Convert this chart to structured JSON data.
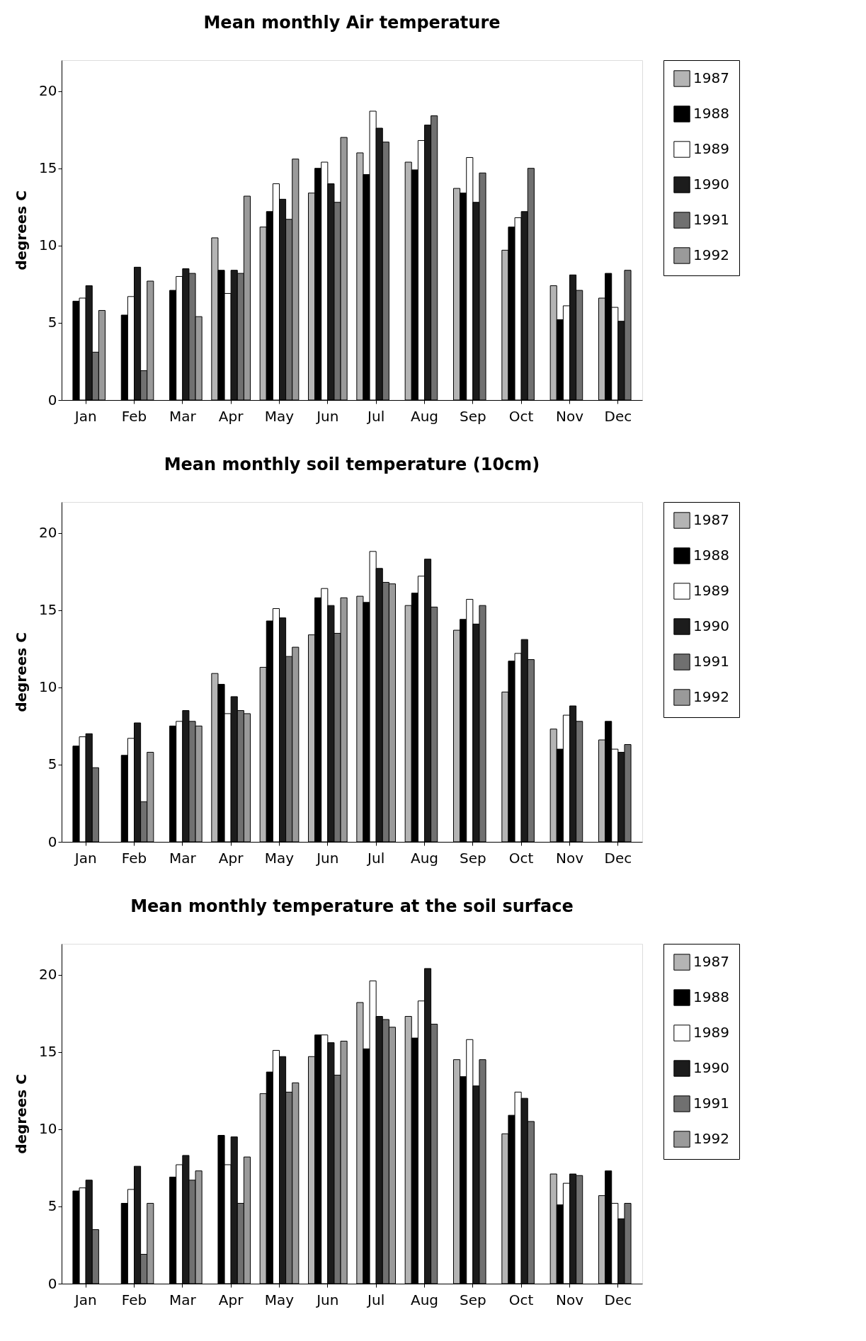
{
  "chart_data": [
    {
      "type": "bar",
      "title": "Mean monthly Air temperature",
      "ylabel": "degrees C",
      "categories": [
        "Jan",
        "Feb",
        "Mar",
        "Apr",
        "May",
        "Jun",
        "Jul",
        "Aug",
        "Sep",
        "Oct",
        "Nov",
        "Dec"
      ],
      "ylim": [
        0,
        22
      ],
      "yticks": [
        0,
        5,
        10,
        15,
        20
      ],
      "grid": false,
      "legend": "right",
      "series": [
        {
          "name": "1987",
          "color": "#b4b4b4",
          "values": [
            null,
            null,
            null,
            10.5,
            11.2,
            13.4,
            16.0,
            15.4,
            13.7,
            9.7,
            7.4,
            6.6
          ]
        },
        {
          "name": "1988",
          "color": "#000000",
          "values": [
            6.4,
            5.5,
            7.1,
            8.4,
            12.2,
            15.0,
            14.6,
            14.9,
            13.4,
            11.2,
            5.2,
            8.2
          ]
        },
        {
          "name": "1989",
          "color": "#ffffff",
          "values": [
            6.6,
            6.7,
            8.0,
            6.9,
            14.0,
            15.4,
            18.7,
            16.8,
            15.7,
            11.8,
            6.1,
            6.0
          ]
        },
        {
          "name": "1990",
          "color": "#1c1c1c",
          "values": [
            7.4,
            8.6,
            8.5,
            8.4,
            13.0,
            14.0,
            17.6,
            17.8,
            12.8,
            12.2,
            8.1,
            5.1
          ]
        },
        {
          "name": "1991",
          "color": "#707070",
          "values": [
            3.1,
            1.9,
            8.2,
            8.2,
            11.7,
            12.8,
            16.7,
            18.4,
            14.7,
            15.0,
            7.1,
            8.4
          ]
        },
        {
          "name": "1992",
          "color": "#9a9a9a",
          "values": [
            5.8,
            7.7,
            5.4,
            13.2,
            15.6,
            17.0,
            null,
            null,
            null,
            null,
            null,
            null
          ]
        }
      ]
    },
    {
      "type": "bar",
      "title": "Mean monthly soil temperature (10cm)",
      "ylabel": "degrees C",
      "categories": [
        "Jan",
        "Feb",
        "Mar",
        "Apr",
        "May",
        "Jun",
        "Jul",
        "Aug",
        "Sep",
        "Oct",
        "Nov",
        "Dec"
      ],
      "ylim": [
        0,
        22
      ],
      "yticks": [
        0,
        5,
        10,
        15,
        20
      ],
      "grid": false,
      "legend": "right",
      "series": [
        {
          "name": "1987",
          "color": "#b4b4b4",
          "values": [
            null,
            null,
            null,
            10.9,
            11.3,
            13.4,
            15.9,
            15.3,
            13.7,
            9.7,
            7.3,
            6.6
          ]
        },
        {
          "name": "1988",
          "color": "#000000",
          "values": [
            6.2,
            5.6,
            7.5,
            10.2,
            14.3,
            15.8,
            15.5,
            16.1,
            14.4,
            11.7,
            6.0,
            7.8
          ]
        },
        {
          "name": "1989",
          "color": "#ffffff",
          "values": [
            6.8,
            6.7,
            7.8,
            8.3,
            15.1,
            16.4,
            18.8,
            17.2,
            15.7,
            12.2,
            8.2,
            6.0
          ]
        },
        {
          "name": "1990",
          "color": "#1c1c1c",
          "values": [
            7.0,
            7.7,
            8.5,
            9.4,
            14.5,
            15.3,
            17.7,
            18.3,
            14.1,
            13.1,
            8.8,
            5.8
          ]
        },
        {
          "name": "1991",
          "color": "#707070",
          "values": [
            4.8,
            2.6,
            7.8,
            8.5,
            12.0,
            13.5,
            16.8,
            15.2,
            15.3,
            11.8,
            7.8,
            6.3
          ]
        },
        {
          "name": "1992",
          "color": "#9a9a9a",
          "values": [
            null,
            5.8,
            7.5,
            8.3,
            12.6,
            15.8,
            16.7,
            null,
            null,
            null,
            null,
            null
          ]
        }
      ]
    },
    {
      "type": "bar",
      "title": "Mean monthly temperature at the soil surface",
      "ylabel": "degrees C",
      "categories": [
        "Jan",
        "Feb",
        "Mar",
        "Apr",
        "May",
        "Jun",
        "Jul",
        "Aug",
        "Sep",
        "Oct",
        "Nov",
        "Dec"
      ],
      "ylim": [
        0,
        22
      ],
      "yticks": [
        0,
        5,
        10,
        15,
        20
      ],
      "grid": false,
      "legend": "right",
      "series": [
        {
          "name": "1987",
          "color": "#b4b4b4",
          "values": [
            null,
            null,
            null,
            null,
            12.3,
            14.7,
            18.2,
            17.3,
            14.5,
            9.7,
            7.1,
            5.7
          ]
        },
        {
          "name": "1988",
          "color": "#000000",
          "values": [
            6.0,
            5.2,
            6.9,
            9.6,
            13.7,
            16.1,
            15.2,
            15.9,
            13.4,
            10.9,
            5.1,
            7.3
          ]
        },
        {
          "name": "1989",
          "color": "#ffffff",
          "values": [
            6.2,
            6.1,
            7.7,
            7.7,
            15.1,
            16.1,
            19.6,
            18.3,
            15.8,
            12.4,
            6.5,
            5.2
          ]
        },
        {
          "name": "1990",
          "color": "#1c1c1c",
          "values": [
            6.7,
            7.6,
            8.3,
            9.5,
            14.7,
            15.6,
            17.3,
            20.4,
            12.8,
            12.0,
            7.1,
            4.2
          ]
        },
        {
          "name": "1991",
          "color": "#707070",
          "values": [
            3.5,
            1.9,
            6.7,
            5.2,
            12.4,
            13.5,
            17.1,
            16.8,
            14.5,
            10.5,
            7.0,
            5.2
          ]
        },
        {
          "name": "1992",
          "color": "#9a9a9a",
          "values": [
            null,
            5.2,
            7.3,
            8.2,
            13.0,
            15.7,
            16.6,
            null,
            null,
            null,
            null,
            null
          ]
        }
      ]
    }
  ]
}
